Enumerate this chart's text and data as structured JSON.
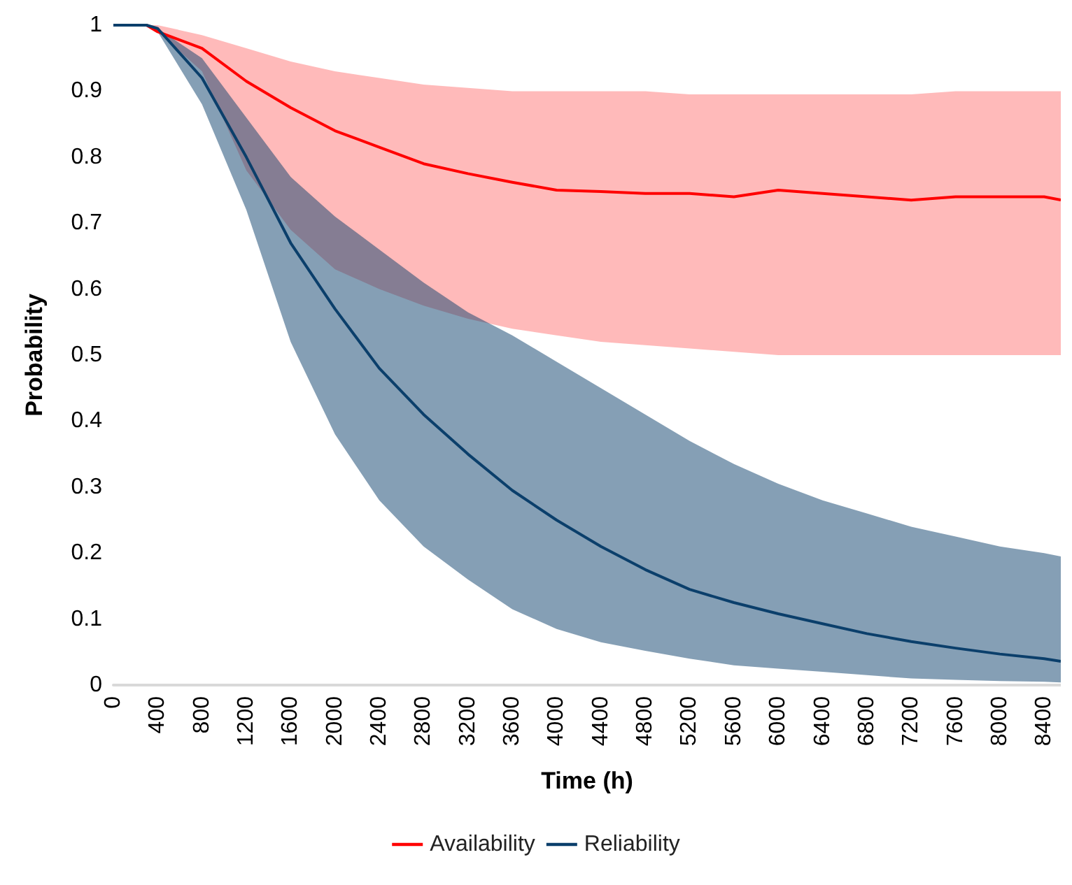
{
  "chart_data": {
    "type": "line",
    "xlabel": "Time (h)",
    "ylabel": "Probability",
    "x": [
      0,
      300,
      400,
      800,
      1200,
      1600,
      2000,
      2400,
      2800,
      3200,
      3600,
      4000,
      4400,
      4800,
      5200,
      5600,
      6000,
      6400,
      6800,
      7200,
      7600,
      8000,
      8400,
      8550
    ],
    "series": [
      {
        "name": "Availability",
        "color": "#ff0000",
        "values": [
          1,
          1,
          0.99,
          0.965,
          0.915,
          0.875,
          0.84,
          0.815,
          0.79,
          0.775,
          0.762,
          0.75,
          0.748,
          0.745,
          0.745,
          0.74,
          0.75,
          0.745,
          0.74,
          0.735,
          0.74,
          0.74,
          0.74,
          0.735
        ],
        "upper": [
          1,
          1,
          1,
          0.985,
          0.965,
          0.945,
          0.93,
          0.92,
          0.91,
          0.905,
          0.9,
          0.9,
          0.9,
          0.9,
          0.895,
          0.895,
          0.895,
          0.895,
          0.895,
          0.895,
          0.9,
          0.9,
          0.9,
          0.9
        ],
        "lower": [
          1,
          1,
          0.99,
          0.93,
          0.78,
          0.69,
          0.63,
          0.6,
          0.575,
          0.555,
          0.54,
          0.53,
          0.52,
          0.515,
          0.51,
          0.505,
          0.5,
          0.5,
          0.5,
          0.5,
          0.5,
          0.5,
          0.5,
          0.5
        ]
      },
      {
        "name": "Reliability",
        "color": "#0b3f6b",
        "values": [
          1,
          1,
          0.995,
          0.92,
          0.8,
          0.67,
          0.57,
          0.48,
          0.41,
          0.35,
          0.295,
          0.25,
          0.21,
          0.175,
          0.145,
          0.125,
          0.108,
          0.093,
          0.078,
          0.066,
          0.056,
          0.047,
          0.04,
          0.036
        ],
        "upper": [
          1,
          1,
          0.995,
          0.95,
          0.86,
          0.77,
          0.71,
          0.66,
          0.61,
          0.565,
          0.53,
          0.49,
          0.45,
          0.41,
          0.37,
          0.335,
          0.305,
          0.28,
          0.26,
          0.24,
          0.225,
          0.21,
          0.2,
          0.195
        ],
        "lower": [
          1,
          1,
          0.99,
          0.88,
          0.72,
          0.52,
          0.38,
          0.28,
          0.21,
          0.16,
          0.115,
          0.085,
          0.065,
          0.052,
          0.04,
          0.03,
          0.025,
          0.02,
          0.015,
          0.01,
          0.008,
          0.006,
          0.005,
          0.004
        ]
      }
    ],
    "xlim": [
      0,
      8550
    ],
    "xticks": [
      0,
      400,
      800,
      1200,
      1600,
      2000,
      2400,
      2800,
      3200,
      3600,
      4000,
      4400,
      4800,
      5200,
      5600,
      6000,
      6400,
      6800,
      7200,
      7600,
      8000,
      8400
    ],
    "ylim": [
      0,
      1
    ],
    "yticks": [
      0,
      0.1,
      0.2,
      0.3,
      0.4,
      0.5,
      0.6,
      0.7,
      0.8,
      0.9,
      1
    ],
    "grid": false,
    "legend": "bottom",
    "marker": "none",
    "line_style": "solid"
  }
}
